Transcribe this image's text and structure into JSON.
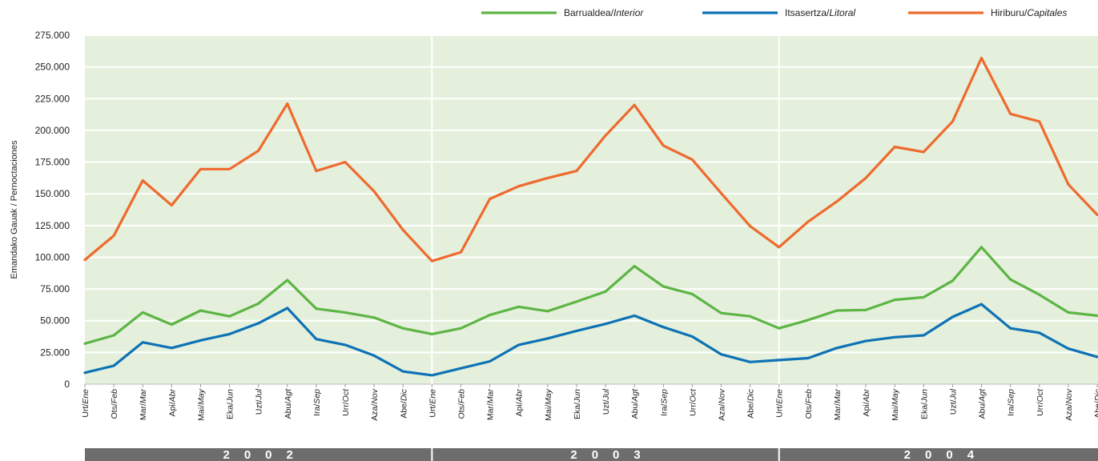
{
  "chart_data": {
    "type": "line",
    "ylabel": "Emandako Gauak / Pernoctaciones",
    "ylim": [
      0,
      275000
    ],
    "yticks": [
      "0",
      "25.000",
      "50.000",
      "75.000",
      "100.000",
      "125.000",
      "150.000",
      "175.000",
      "200.000",
      "225.000",
      "250.000",
      "275.000"
    ],
    "grid": true,
    "legend_position": "top-right",
    "months": [
      {
        "eu": "Urt/",
        "es": "Ene"
      },
      {
        "eu": "Ots/",
        "es": "Feb"
      },
      {
        "eu": "Mar/",
        "es": "Mar"
      },
      {
        "eu": "Api/",
        "es": "Abr"
      },
      {
        "eu": "Mai/",
        "es": "May"
      },
      {
        "eu": "Eka/",
        "es": "Jun"
      },
      {
        "eu": "Uzt/",
        "es": "Jul"
      },
      {
        "eu": "Abu/",
        "es": "Agt"
      },
      {
        "eu": "Ira/",
        "es": "Sep"
      },
      {
        "eu": "Urr/",
        "es": "Oct"
      },
      {
        "eu": "Aza/",
        "es": "Nov"
      },
      {
        "eu": "Abe/",
        "es": "Dic"
      }
    ],
    "years": [
      "2002",
      "2003",
      "2004"
    ],
    "series": [
      {
        "name": "Barrualdea/",
        "name_italic": "Interior",
        "color": "#5db545",
        "values": [
          32000,
          38500,
          56500,
          47000,
          58000,
          53500,
          63500,
          82000,
          59500,
          56500,
          52500,
          44000,
          39500,
          44000,
          54500,
          61000,
          57500,
          65000,
          73000,
          93000,
          77000,
          71000,
          56000,
          53500,
          44000,
          50500,
          58000,
          58500,
          66500,
          68500,
          81500,
          108000,
          82500,
          70500,
          56500,
          54000
        ]
      },
      {
        "name": "Itsasertza/",
        "name_italic": "Litoral",
        "color": "#0e72b5",
        "values": [
          9000,
          14500,
          33000,
          28500,
          34500,
          39500,
          48000,
          60000,
          35500,
          31000,
          22500,
          10000,
          7000,
          12500,
          18000,
          31000,
          36000,
          42000,
          47500,
          54000,
          45000,
          37500,
          23500,
          17500,
          19000,
          20500,
          28500,
          34000,
          37000,
          38500,
          53000,
          63000,
          44000,
          40500,
          28000,
          21500
        ]
      },
      {
        "name": "Hiriburu/",
        "name_italic": "Capitales",
        "color": "#ef6a2e",
        "values": [
          98000,
          117000,
          160500,
          141000,
          169500,
          169500,
          184000,
          221000,
          168000,
          175000,
          152000,
          121500,
          97000,
          104000,
          146000,
          156000,
          162500,
          168000,
          196000,
          220000,
          188000,
          177000,
          150500,
          124500,
          108000,
          128000,
          144000,
          162500,
          187000,
          183000,
          207000,
          257000,
          213000,
          207000,
          157500,
          133500
        ]
      }
    ]
  }
}
